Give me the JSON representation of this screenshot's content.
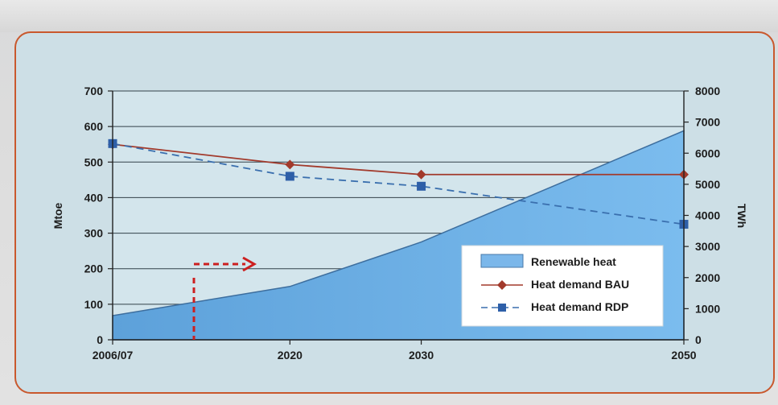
{
  "chart_data": {
    "type": "area+line",
    "x": [
      "2006/07",
      "2020",
      "2030",
      "2050"
    ],
    "x_numeric": [
      2006.5,
      2020,
      2030,
      2050
    ],
    "y_left_label": "Mtoe",
    "y_right_label": "TWh",
    "y_left_ticks": [
      "0",
      "100",
      "200",
      "300",
      "400",
      "500",
      "600",
      "700"
    ],
    "y_right_ticks": [
      "0",
      "1000",
      "2000",
      "3000",
      "4000",
      "5000",
      "6000",
      "7000",
      "8000"
    ],
    "ylim_left": [
      0,
      700
    ],
    "ylim_right": [
      0,
      8000
    ],
    "series": [
      {
        "name": "Renewable heat",
        "type": "area",
        "color": "#6fb1e6",
        "values": [
          68,
          150,
          275,
          588
        ]
      },
      {
        "name": "Heat demand BAU",
        "type": "line",
        "color": "#a23a2c",
        "marker": "diamond",
        "values": [
          550,
          493,
          465,
          465
        ]
      },
      {
        "name": "Heat demand RDP",
        "type": "line",
        "color": "#3a6fae",
        "marker": "square",
        "dashed": true,
        "values": [
          552,
          460,
          432,
          325
        ]
      }
    ],
    "grid": true,
    "legend": "bottom-right"
  }
}
